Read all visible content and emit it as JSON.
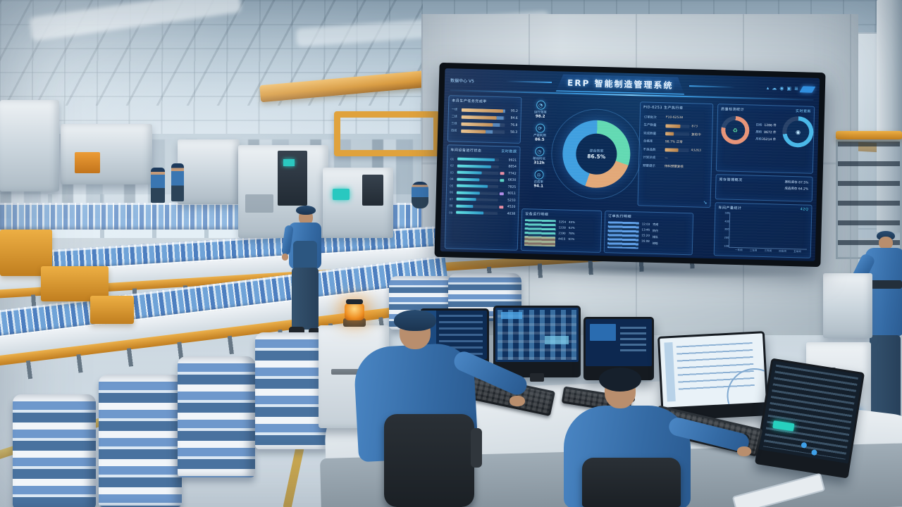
{
  "scene": {
    "accent_colors": {
      "machine_yellow": "#e2a43c",
      "uniform_blue": "#3a76b2",
      "beacon_orange": "#f09330",
      "product_pack_blue": "#6e98cc",
      "screen_navy": "#0a2450"
    }
  },
  "dashboard": {
    "header": {
      "device_label": "数据中心 V5",
      "title": "ERP 智能制造管理系统",
      "status_icons": [
        {
          "name": "signal-icon",
          "glyph": "▴"
        },
        {
          "name": "cloud-icon",
          "glyph": "☁"
        },
        {
          "name": "user-icon",
          "glyph": "◉"
        },
        {
          "name": "alert-icon",
          "glyph": "▣"
        },
        {
          "name": "menu-icon",
          "glyph": "≣"
        }
      ],
      "logo_color": "#2f8fe0"
    },
    "production_panel": {
      "title": "本月生产任务完成率",
      "bar_color_start": "#e8c18a",
      "bar_color_end": "#c08a50",
      "bars": [
        {
          "label": "一线",
          "pct": 95,
          "value": "95.2"
        },
        {
          "label": "二线",
          "pct": 80,
          "value": "84.6"
        },
        {
          "label": "三线",
          "pct": 73,
          "value": "76.8"
        },
        {
          "label": "四线",
          "pct": 56,
          "value": "58.3"
        }
      ]
    },
    "device_panel": {
      "title": "车间设备运行状态",
      "right_label": "实时数据",
      "rows": [
        {
          "label": "01",
          "pct": 90,
          "value": "9921",
          "chip": ""
        },
        {
          "label": "02",
          "pct": 82,
          "value": "8854",
          "chip": ""
        },
        {
          "label": "03",
          "pct": 60,
          "value": "7742",
          "chip": "#e88aa0"
        },
        {
          "label": "04",
          "pct": 54,
          "value": "6630",
          "chip": "#57d2c3"
        },
        {
          "label": "05",
          "pct": 74,
          "value": "7825",
          "chip": ""
        },
        {
          "label": "06",
          "pct": 56,
          "value": "6011",
          "chip": "#b08ae8"
        },
        {
          "label": "07",
          "pct": 48,
          "value": "5233",
          "chip": ""
        },
        {
          "label": "08",
          "pct": 40,
          "value": "4520",
          "chip": "#e88aa0"
        },
        {
          "label": "09",
          "pct": 66,
          "value": "4038",
          "chip": ""
        }
      ]
    },
    "kpis": [
      {
        "icon": "gauge-icon",
        "glyph": "◔",
        "label": "运行效率",
        "value": "98.2"
      },
      {
        "icon": "cycle-icon",
        "glyph": "⟳",
        "label": "产能利用",
        "value": "86.5"
      },
      {
        "icon": "clock-icon",
        "glyph": "◷",
        "label": "稼动时长",
        "value": "312h"
      },
      {
        "icon": "target-icon",
        "glyph": "◎",
        "label": "达成率",
        "value": "94.1"
      }
    ],
    "donut": {
      "center_title": "综合效率",
      "center_value": "86.5%",
      "segments": [
        {
          "name": "待机",
          "pct": 30,
          "color": "#62d9b2"
        },
        {
          "name": "停机",
          "pct": 25,
          "color": "#e2a878"
        },
        {
          "name": "运行",
          "pct": 45,
          "color": "#3f9fe0"
        }
      ]
    },
    "orders_panel": {
      "title": "PID-6253 生产执行单",
      "bar_color_start": "#dcae76",
      "bar_color_end": "#b8824a",
      "rows": [
        {
          "label": "订单批次",
          "bar": 0,
          "value": "P10-62538"
        },
        {
          "label": "生产数量",
          "bar": 62,
          "value": "873"
        },
        {
          "label": "完成数量",
          "bar": 34,
          "value": "复检中"
        },
        {
          "label": "合格率",
          "bar": 0,
          "value": "98.7% 正常"
        },
        {
          "label": "不良品数",
          "bar": 55,
          "value": "43263"
        },
        {
          "label": "计划达成",
          "bar": 0,
          "value": "—"
        },
        {
          "label": "预警提示",
          "bar": 0,
          "value": "待料预警复核"
        }
      ]
    },
    "quality_panel": {
      "title": "质量检测统计",
      "right_label": "实时更新",
      "gauge_left": {
        "name": "pass-rate-gauge",
        "value": 78,
        "color": "#e89478",
        "glyph": "♻",
        "glyph_color": "#5fe0a0"
      },
      "gauge_right": {
        "name": "capacity-gauge",
        "value": 72,
        "color": "#49b8e8",
        "glyph": "◉",
        "glyph_color": "#bfe8ff"
      },
      "rows": [
        {
          "label": "日检",
          "value": "1286 件"
        },
        {
          "label": "周检",
          "value": "8672 件"
        },
        {
          "label": "月检",
          "value": "35214 件"
        }
      ]
    },
    "inventory_panel": {
      "title": "库存管理概况",
      "rows": [
        "原料库存 87.5%",
        "成品库存 64.2%"
      ]
    },
    "output_chart": {
      "type": "bar",
      "title": "车间产量统计",
      "corner_label": "42Q",
      "ymax": 500,
      "y_ticks": [
        "500",
        "400",
        "300",
        "200",
        "100"
      ],
      "bars": [
        {
          "label": "一车间",
          "value": 340,
          "color": "#4fd2e8"
        },
        {
          "label": "二车间",
          "value": 315,
          "color": "#e8a878"
        },
        {
          "label": "三车间",
          "value": 285,
          "color": "#4fd2e8"
        },
        {
          "label": "四车间",
          "value": 430,
          "color": "#4fd2e8"
        },
        {
          "label": "五车间",
          "value": 205,
          "color": "#4fd2e8"
        }
      ]
    },
    "detail_tables": {
      "left": {
        "title": "设备运行明细",
        "stripe_top_color": "#5fd0c8",
        "stripe_bottom_color": "#d89a6a",
        "col1": [
          "3254",
          "1228",
          "2190",
          "4415"
        ],
        "col2": [
          "45%",
          "62%",
          "78%",
          "91%"
        ]
      },
      "right": {
        "title": "订单执行明细",
        "stripe_color": "#5f9fe8",
        "col1": [
          "12:03",
          "13:45",
          "15:20",
          "16:08"
        ],
        "col2": [
          "完成",
          "执行",
          "排队",
          "待检"
        ]
      }
    }
  }
}
